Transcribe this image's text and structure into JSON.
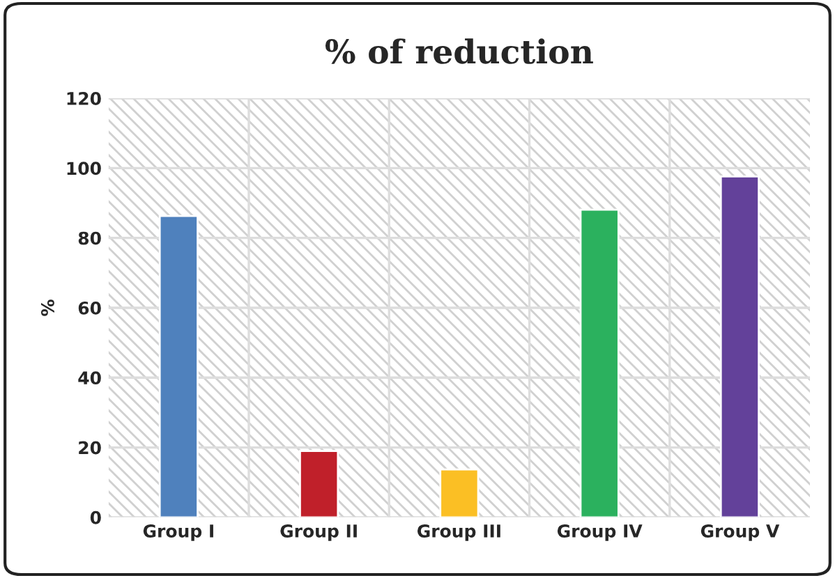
{
  "chart_data": {
    "type": "bar",
    "title": "% of reduction",
    "ylabel": "%",
    "categories": [
      "Group I",
      "Group II",
      "Group III",
      "Group IV",
      "Group V"
    ],
    "values": [
      86.3,
      19,
      13.7,
      88.1,
      97.6
    ],
    "colors": [
      "#4f81bd",
      "#c0202a",
      "#fbbf24",
      "#2bb15e",
      "#63419a"
    ],
    "ylim": [
      0,
      120
    ],
    "yticks": [
      0,
      20,
      40,
      60,
      80,
      100,
      120
    ],
    "grid": true,
    "legend": false
  }
}
